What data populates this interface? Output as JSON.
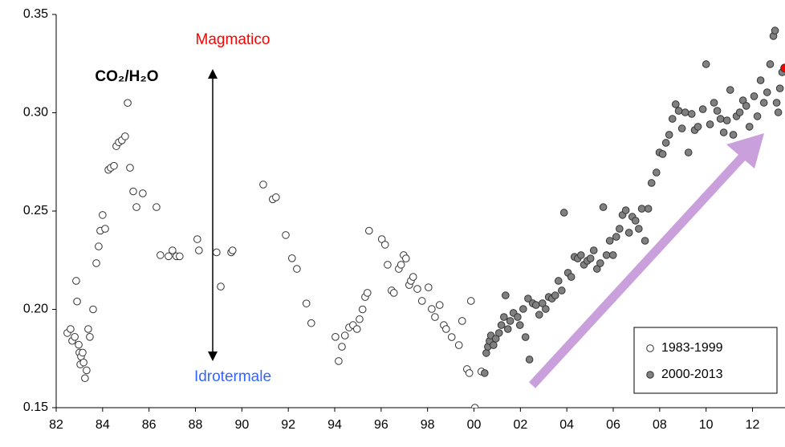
{
  "chart_data": {
    "type": "scatter",
    "annotations": {
      "ratio": "CO₂/H₂O",
      "top": "Magmatico",
      "bottom": "Idrotermale"
    },
    "xlim": [
      1982,
      2013.4
    ],
    "xticks": [
      {
        "value": 1982,
        "label": "82"
      },
      {
        "value": 1984,
        "label": "84"
      },
      {
        "value": 1986,
        "label": "86"
      },
      {
        "value": 1988,
        "label": "88"
      },
      {
        "value": 1990,
        "label": "90"
      },
      {
        "value": 1992,
        "label": "92"
      },
      {
        "value": 1994,
        "label": "94"
      },
      {
        "value": 1996,
        "label": "96"
      },
      {
        "value": 1998,
        "label": "98"
      },
      {
        "value": 2000,
        "label": "00"
      },
      {
        "value": 2002,
        "label": "02"
      },
      {
        "value": 2004,
        "label": "04"
      },
      {
        "value": 2006,
        "label": "06"
      },
      {
        "value": 2008,
        "label": "08"
      },
      {
        "value": 2010,
        "label": "10"
      },
      {
        "value": 2012,
        "label": "12"
      }
    ],
    "ylim": [
      0.15,
      0.35
    ],
    "yticks": [
      0.15,
      {
        "value": 0.2,
        "label": "0.20"
      },
      0.25,
      {
        "value": 0.3,
        "label": "0.30"
      },
      0.35
    ],
    "legend": "lower right",
    "series": [
      {
        "name": "1983-1999",
        "color": "#ffffff",
        "x": [
          1982.48,
          1982.62,
          1982.69,
          1982.8,
          1982.86,
          1982.9,
          1982.97,
          1983.0,
          1983.04,
          1983.07,
          1983.14,
          1983.18,
          1983.24,
          1983.31,
          1983.38,
          1983.45,
          1983.59,
          1983.73,
          1983.83,
          1983.9,
          1984.0,
          1984.11,
          1984.25,
          1984.35,
          1984.49,
          1984.59,
          1984.7,
          1984.83,
          1984.97,
          1985.08,
          1985.18,
          1985.32,
          1985.46,
          1985.73,
          1986.32,
          1986.49,
          1986.84,
          1987.01,
          1987.18,
          1987.32,
          1988.08,
          1988.15,
          1988.91,
          1989.09,
          1989.54,
          1989.6,
          1990.92,
          1991.33,
          1991.47,
          1991.89,
          1992.16,
          1992.37,
          1992.78,
          1992.99,
          1994.03,
          1994.17,
          1994.31,
          1994.44,
          1994.62,
          1994.79,
          1994.96,
          1995.07,
          1995.2,
          1995.31,
          1995.41,
          1995.48,
          1996.03,
          1996.17,
          1996.28,
          1996.45,
          1996.55,
          1996.76,
          1996.86,
          1996.97,
          1997.07,
          1997.21,
          1997.28,
          1997.38,
          1997.56,
          1997.76,
          1998.04,
          1998.18,
          1998.32,
          1998.52,
          1998.7,
          1998.8,
          1999.04,
          1999.35,
          1999.49,
          1999.7,
          1999.8,
          1999.87,
          2000.04,
          2000.32
        ],
        "values": [
          0.188,
          0.19,
          0.184,
          0.186,
          0.2145,
          0.204,
          0.182,
          0.178,
          0.172,
          0.176,
          0.178,
          0.173,
          0.165,
          0.169,
          0.19,
          0.186,
          0.2,
          0.2235,
          0.232,
          0.24,
          0.248,
          0.241,
          0.271,
          0.272,
          0.273,
          0.283,
          0.285,
          0.286,
          0.288,
          0.305,
          0.272,
          0.26,
          0.252,
          0.259,
          0.252,
          0.2276,
          0.227,
          0.23,
          0.227,
          0.227,
          0.2357,
          0.23,
          0.229,
          0.2116,
          0.229,
          0.23,
          0.2635,
          0.256,
          0.257,
          0.2378,
          0.226,
          0.2206,
          0.203,
          0.193,
          0.186,
          0.1737,
          0.181,
          0.1867,
          0.1908,
          0.192,
          0.19,
          0.195,
          0.2,
          0.2063,
          0.2084,
          0.24,
          0.2357,
          0.2329,
          0.2227,
          0.2096,
          0.2084,
          0.2206,
          0.2227,
          0.2276,
          0.2259,
          0.2124,
          0.2145,
          0.2165,
          0.2104,
          0.2043,
          0.2112,
          0.2002,
          0.1961,
          0.2022,
          0.192,
          0.19,
          0.1859,
          0.1818,
          0.1941,
          0.1696,
          0.1676,
          0.2043,
          0.15,
          0.1684
        ]
      },
      {
        "name": "2000-2013",
        "color": "#808080",
        "x": [
          2000.46,
          2000.53,
          2000.6,
          2000.67,
          2000.73,
          2000.84,
          2000.94,
          2001.08,
          2001.18,
          2001.29,
          2001.36,
          2001.46,
          2001.56,
          2001.7,
          2001.88,
          2001.98,
          2002.12,
          2002.22,
          2002.33,
          2002.39,
          2002.53,
          2002.67,
          2002.81,
          2002.95,
          2003.09,
          2003.22,
          2003.36,
          2003.5,
          2003.64,
          2003.78,
          2003.88,
          2004.05,
          2004.19,
          2004.33,
          2004.47,
          2004.61,
          2004.74,
          2004.88,
          2005.02,
          2005.16,
          2005.3,
          2005.44,
          2005.57,
          2005.71,
          2005.85,
          2005.99,
          2006.13,
          2006.27,
          2006.4,
          2006.54,
          2006.68,
          2006.82,
          2006.96,
          2007.1,
          2007.23,
          2007.37,
          2007.51,
          2007.65,
          2007.86,
          2007.99,
          2008.13,
          2008.27,
          2008.41,
          2008.55,
          2008.69,
          2008.82,
          2008.96,
          2009.1,
          2009.24,
          2009.38,
          2009.51,
          2009.65,
          2009.86,
          2010.0,
          2010.17,
          2010.34,
          2010.48,
          2010.62,
          2010.76,
          2010.9,
          2011.04,
          2011.17,
          2011.31,
          2011.45,
          2011.59,
          2011.73,
          2011.87,
          2012.07,
          2012.21,
          2012.35,
          2012.49,
          2012.63,
          2012.76,
          2012.9,
          2012.97,
          2013.04,
          2013.11,
          2013.18,
          2013.28
        ],
        "values": [
          0.1676,
          0.1778,
          0.181,
          0.1839,
          0.1867,
          0.1818,
          0.1851,
          0.188,
          0.192,
          0.1961,
          0.2071,
          0.19,
          0.1941,
          0.1982,
          0.1961,
          0.192,
          0.2002,
          0.1859,
          0.2055,
          0.1745,
          0.2031,
          0.2022,
          0.1973,
          0.2031,
          0.2002,
          0.2063,
          0.2055,
          0.2071,
          0.2145,
          0.2096,
          0.2492,
          0.2186,
          0.2165,
          0.2267,
          0.2259,
          0.2276,
          0.2227,
          0.2247,
          0.2259,
          0.23,
          0.2206,
          0.2235,
          0.252,
          0.2276,
          0.2349,
          0.2276,
          0.2369,
          0.241,
          0.248,
          0.2504,
          0.239,
          0.2471,
          0.2451,
          0.241,
          0.2512,
          0.2349,
          0.2512,
          0.2643,
          0.2696,
          0.2798,
          0.279,
          0.2847,
          0.2888,
          0.2969,
          0.3043,
          0.301,
          0.292,
          0.3002,
          0.2798,
          0.2994,
          0.2912,
          0.2929,
          0.3018,
          0.3247,
          0.2941,
          0.3051,
          0.301,
          0.2969,
          0.29,
          0.2961,
          0.3116,
          0.2888,
          0.2982,
          0.3002,
          0.3063,
          0.3035,
          0.2929,
          0.3084,
          0.2982,
          0.3165,
          0.3051,
          0.3104,
          0.3247,
          0.339,
          0.3418,
          0.3051,
          0.3002,
          0.3124,
          0.3206
        ]
      }
    ],
    "highlight": {
      "x": 2013.39,
      "y": 0.3227,
      "color": "#ff0000"
    }
  }
}
